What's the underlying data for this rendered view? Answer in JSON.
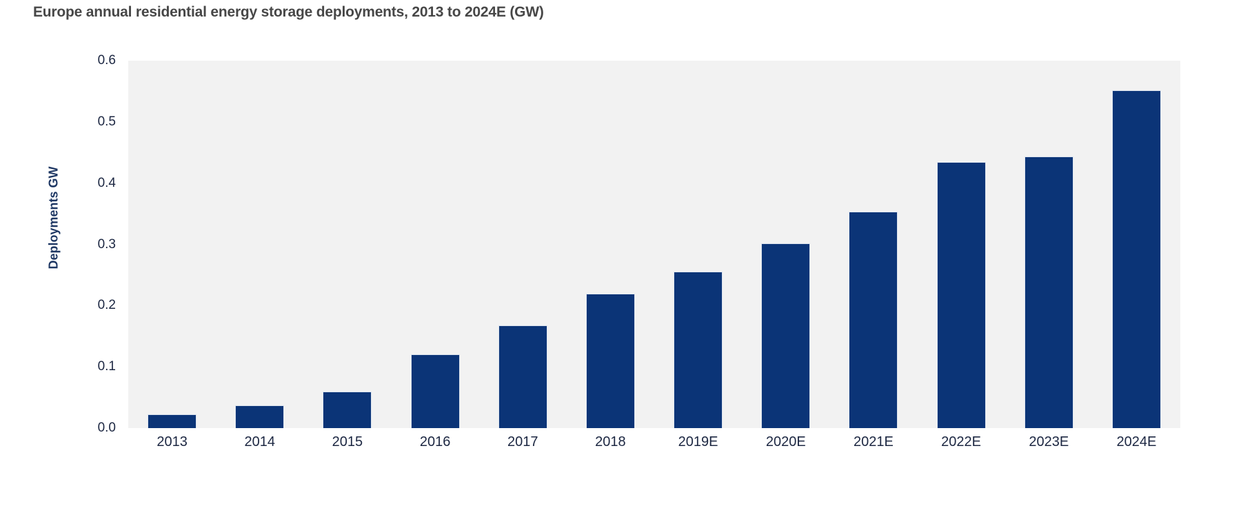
{
  "page": {
    "background": "#ffffff"
  },
  "chart_data": {
    "type": "bar",
    "title": "Europe annual residential energy storage deployments, 2013 to 2024E (GW)",
    "xlabel": "",
    "ylabel": "Deployments GW",
    "categories": [
      "2013",
      "2014",
      "2015",
      "2016",
      "2017",
      "2018",
      "2019E",
      "2020E",
      "2021E",
      "2022E",
      "2023E",
      "2024E"
    ],
    "values": [
      0.022,
      0.037,
      0.06,
      0.12,
      0.168,
      0.22,
      0.256,
      0.302,
      0.354,
      0.434,
      0.444,
      0.552
    ],
    "ylim": [
      0,
      0.6
    ],
    "ytick_labels": [
      "0.0",
      "0.1",
      "0.2",
      "0.3",
      "0.4",
      "0.5",
      "0.6"
    ],
    "grid": false,
    "legend": null,
    "colors": {
      "bar": "#0b3477",
      "bar_edge": "#dbe3ee",
      "plot_background": "#f2f2f2",
      "title_text": "#474747",
      "axis_tick_text": "#1c2742",
      "y_axis_title_text": "#1f3864",
      "page_background": "#ffffff"
    }
  }
}
